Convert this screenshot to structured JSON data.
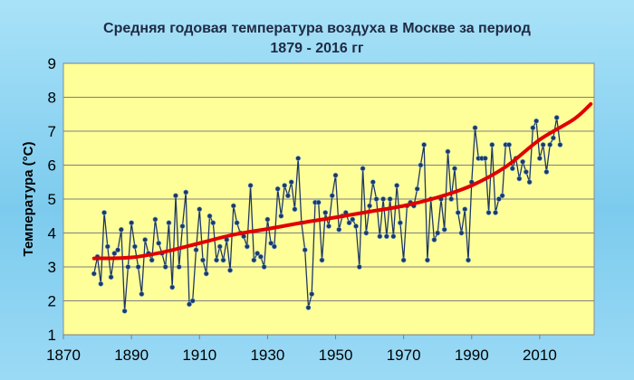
{
  "chart_data": {
    "type": "line",
    "title_line1": "Средняя годовая температура воздуха в Москве за период",
    "title_line2": "1879 - 2016 гг",
    "xlabel": "",
    "ylabel": "Температура (°С)",
    "xlim": [
      1870,
      2026
    ],
    "ylim": [
      1,
      9
    ],
    "xticks": [
      "1870",
      "1890",
      "1910",
      "1930",
      "1950",
      "1970",
      "1990",
      "2010"
    ],
    "xtick_values": [
      1870,
      1890,
      1910,
      1930,
      1950,
      1970,
      1990,
      2010
    ],
    "yticks": [
      "1",
      "2",
      "3",
      "4",
      "5",
      "6",
      "7",
      "8",
      "9"
    ],
    "ytick_values": [
      1,
      2,
      3,
      4,
      5,
      6,
      7,
      8,
      9
    ],
    "grid": true,
    "legend": "none",
    "colors": {
      "plot_bg": "#ffff99",
      "series_line": "#1f3864",
      "series_marker": "#1f3864",
      "trend": "#e00000",
      "grid": "#7f7f7f",
      "title": "#1f2a44"
    },
    "series": [
      {
        "x": [
          1879,
          1880,
          1881,
          1882,
          1883,
          1884,
          1885,
          1886,
          1887,
          1888,
          1889,
          1890,
          1891,
          1892,
          1893,
          1894,
          1895,
          1896,
          1897,
          1898,
          1899,
          1900,
          1901,
          1902,
          1903,
          1904,
          1905,
          1906,
          1907,
          1908,
          1909,
          1910,
          1911,
          1912,
          1913,
          1914,
          1915,
          1916,
          1917,
          1918,
          1919,
          1920,
          1921,
          1922,
          1923,
          1924,
          1925,
          1926,
          1927,
          1928,
          1929,
          1930,
          1931,
          1932,
          1933,
          1934,
          1935,
          1936,
          1937,
          1938,
          1939,
          1940,
          1941,
          1942,
          1943,
          1944,
          1945,
          1946,
          1947,
          1948,
          1949,
          1950,
          1951,
          1952,
          1953,
          1954,
          1955,
          1956,
          1957,
          1958,
          1959,
          1960,
          1961,
          1962,
          1963,
          1964,
          1965,
          1966,
          1967,
          1968,
          1969,
          1970,
          1971,
          1972,
          1973,
          1974,
          1975,
          1976,
          1977,
          1978,
          1979,
          1980,
          1981,
          1982,
          1983,
          1984,
          1985,
          1986,
          1987,
          1988,
          1989,
          1990,
          1991,
          1992,
          1993,
          1994,
          1995,
          1996,
          1997,
          1998,
          1999,
          2000,
          2001,
          2002,
          2003,
          2004,
          2005,
          2006,
          2007,
          2008,
          2009,
          2010,
          2011,
          2012,
          2013,
          2014,
          2015,
          2016
        ],
        "values": [
          2.8,
          3.3,
          2.5,
          4.6,
          3.6,
          2.7,
          3.4,
          3.5,
          4.1,
          1.7,
          3.0,
          4.3,
          3.6,
          3.0,
          2.2,
          3.8,
          3.4,
          3.2,
          4.4,
          3.7,
          3.4,
          3.0,
          4.3,
          2.4,
          5.1,
          3.0,
          4.2,
          5.2,
          1.9,
          2.0,
          3.5,
          4.7,
          3.2,
          2.8,
          4.5,
          4.3,
          3.2,
          3.6,
          3.2,
          3.8,
          2.9,
          4.8,
          4.3,
          4.0,
          3.9,
          3.6,
          5.4,
          3.2,
          3.4,
          3.3,
          3.0,
          4.4,
          3.7,
          3.6,
          5.3,
          4.5,
          5.4,
          5.1,
          5.5,
          4.7,
          6.2,
          4.3,
          3.5,
          1.8,
          2.2,
          4.9,
          4.9,
          3.2,
          4.6,
          4.2,
          5.1,
          5.7,
          4.1,
          4.5,
          4.6,
          4.3,
          4.4,
          4.2,
          3.0,
          5.9,
          4.0,
          4.8,
          5.5,
          5.0,
          3.9,
          5.0,
          3.9,
          5.0,
          3.9,
          5.4,
          4.3,
          3.2,
          4.8,
          4.9,
          4.8,
          5.3,
          6.0,
          6.6,
          3.2,
          5.0,
          3.8,
          4.0,
          5.0,
          4.1,
          6.4,
          5.0,
          5.9,
          4.6,
          4.0,
          4.7,
          3.2,
          5.5,
          7.1,
          6.2,
          6.2,
          6.2,
          4.6,
          6.6,
          4.6,
          5.0,
          5.1,
          6.6,
          6.6,
          5.9,
          6.2,
          5.6,
          6.1,
          5.8,
          5.5,
          7.1,
          7.3,
          6.2,
          6.6,
          5.8,
          6.6,
          6.8,
          7.4,
          6.6
        ]
      }
    ],
    "trend": {
      "x": [
        1879,
        1890,
        1900,
        1910,
        1920,
        1930,
        1940,
        1950,
        1960,
        1970,
        1980,
        1990,
        2000,
        2010,
        2020,
        2025
      ],
      "values": [
        3.25,
        3.28,
        3.45,
        3.7,
        3.95,
        4.12,
        4.3,
        4.46,
        4.63,
        4.8,
        5.05,
        5.4,
        5.95,
        6.75,
        7.35,
        7.8
      ]
    }
  }
}
